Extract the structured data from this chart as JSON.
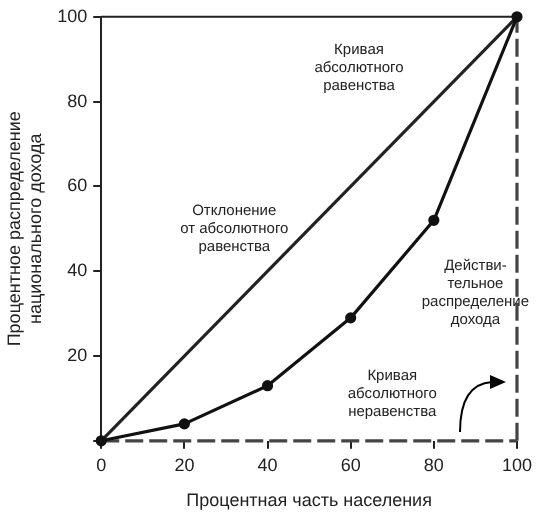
{
  "chart_data": {
    "type": "line",
    "xlabel": "Процентная часть населения",
    "ylabel": "Процентное распределение\nнационального дохода",
    "xlim": [
      0,
      100
    ],
    "ylim": [
      0,
      100
    ],
    "xticks": [
      0,
      20,
      40,
      60,
      80,
      100
    ],
    "yticks": [
      {
        "value": 0,
        "label": null
      },
      20,
      40,
      60,
      80,
      100
    ],
    "grid": false,
    "legend": false,
    "series": [
      {
        "x": [
          0,
          100
        ],
        "values": [
          0,
          100
        ],
        "color": "#222222",
        "marker": "none",
        "line_style": "solid"
      },
      {
        "x": [
          0,
          20,
          40,
          60,
          80,
          100
        ],
        "values": [
          0,
          4,
          13,
          29,
          52,
          100
        ],
        "color": "#111111",
        "marker": "circle",
        "line_style": "solid"
      }
    ],
    "ref_lines": [
      {
        "axis": "y",
        "value": 0,
        "color": "#444444",
        "line_style": "dashed"
      },
      {
        "axis": "x",
        "value": 100,
        "color": "#444444",
        "line_style": "dashed"
      }
    ],
    "annotations": [
      "Кривая\nабсолютного\nравенства",
      "Отклонение\nот абсолютного\nравенства",
      "Действи-\nтельное\nраспределение\nдохода",
      "Кривая\nабсолютного\nнеравенства"
    ]
  }
}
